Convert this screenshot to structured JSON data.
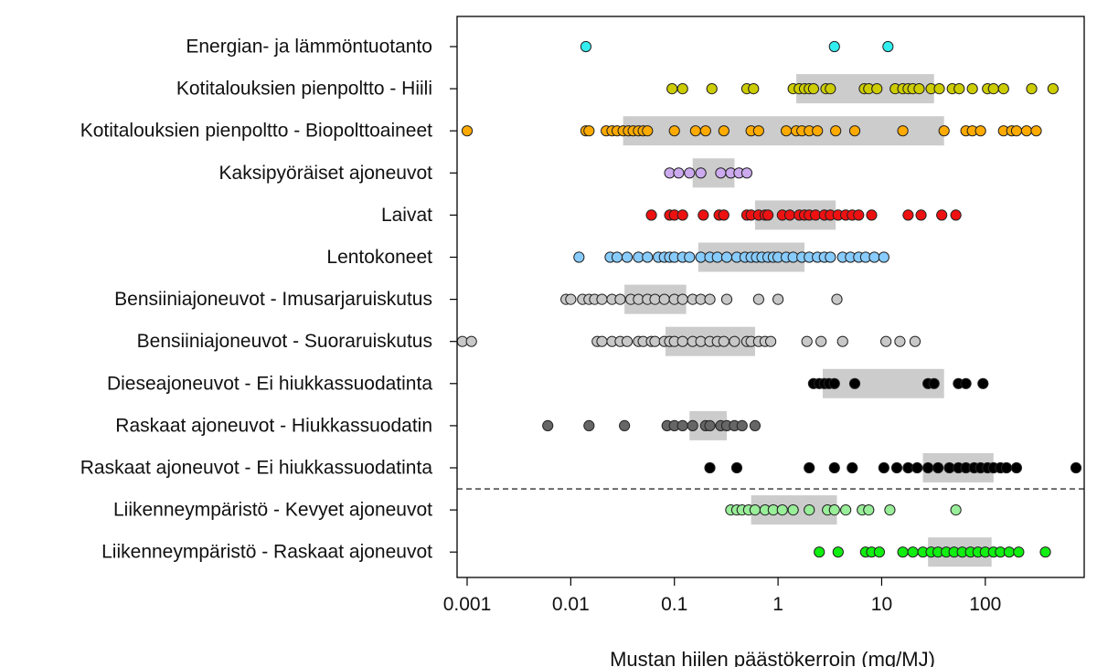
{
  "chart_data": {
    "type": "scatter",
    "xscale": "log",
    "xlim": [
      0.0008,
      900
    ],
    "xlabel": "Mustan hiilen päästökerroin (mg/MJ)",
    "xticks": [
      {
        "value": 0.001,
        "label": "0.001"
      },
      {
        "value": 0.01,
        "label": "0.01"
      },
      {
        "value": 0.1,
        "label": "0.1"
      },
      {
        "value": 1,
        "label": "1"
      },
      {
        "value": 10,
        "label": "10"
      },
      {
        "value": 100,
        "label": "100"
      }
    ],
    "separator_after_category": 10,
    "categories": [
      {
        "key": "energia",
        "label": "Energian- ja lämmöntuotanto",
        "color": "#33eeee",
        "box": null,
        "points": [
          0.014,
          3.5,
          11.5
        ]
      },
      {
        "key": "hiili",
        "label": "Kotitalouksien pienpoltto - Hiili",
        "color": "#cccc00",
        "box": [
          1.5,
          32
        ],
        "points": [
          0.095,
          0.12,
          0.23,
          0.5,
          0.58,
          1.4,
          1.6,
          1.8,
          2.0,
          2.2,
          2.9,
          3.2,
          6.8,
          7.5,
          9.0,
          13.5,
          16.0,
          18.0,
          20.0,
          23.0,
          30.0,
          36.0,
          48.0,
          56.0,
          75.0,
          105.0,
          120.0,
          150.0,
          280.0,
          450.0
        ]
      },
      {
        "key": "bio",
        "label": "Kotitalouksien pienpoltto - Biopolttoaineet",
        "color": "#ffaa00",
        "box": [
          0.032,
          40
        ],
        "points": [
          0.001,
          0.014,
          0.015,
          0.022,
          0.025,
          0.028,
          0.032,
          0.036,
          0.04,
          0.045,
          0.05,
          0.055,
          0.1,
          0.16,
          0.2,
          0.3,
          0.55,
          0.65,
          1.2,
          1.5,
          1.7,
          2.0,
          2.4,
          3.6,
          5.5,
          16.0,
          40.0,
          65.0,
          75.0,
          90.0,
          150.0,
          180.0,
          200.0,
          250.0,
          310.0
        ]
      },
      {
        "key": "kaksi",
        "label": "Kaksipyöräiset ajoneuvot",
        "color": "#ccaaee",
        "box": [
          0.15,
          0.38
        ],
        "points": [
          0.09,
          0.11,
          0.14,
          0.18,
          0.28,
          0.35,
          0.42,
          0.5
        ]
      },
      {
        "key": "laivat",
        "label": "Laivat",
        "color": "#ee1111",
        "box": [
          0.6,
          3.6
        ],
        "points": [
          0.06,
          0.09,
          0.1,
          0.12,
          0.19,
          0.27,
          0.3,
          0.5,
          0.55,
          0.65,
          0.75,
          0.8,
          1.1,
          1.3,
          1.6,
          1.8,
          2.0,
          2.3,
          2.8,
          3.2,
          3.8,
          4.5,
          5.2,
          6.0,
          8.0,
          18.0,
          24.0,
          38.0,
          52.0
        ]
      },
      {
        "key": "lento",
        "label": "Lentokoneet",
        "color": "#88ccff",
        "box": [
          0.17,
          1.8
        ],
        "points": [
          0.012,
          0.024,
          0.028,
          0.035,
          0.045,
          0.055,
          0.07,
          0.08,
          0.09,
          0.1,
          0.12,
          0.14,
          0.18,
          0.22,
          0.26,
          0.32,
          0.4,
          0.48,
          0.55,
          0.62,
          0.7,
          0.8,
          0.9,
          1.0,
          1.2,
          1.4,
          1.7,
          2.0,
          2.4,
          2.8,
          3.2,
          4.2,
          5.0,
          6.0,
          7.0,
          8.5,
          10.5
        ]
      },
      {
        "key": "bens_imu",
        "label": "Bensiiniajoneuvot - Imusarjaruiskutus",
        "color": "#c8c8c8",
        "box": [
          0.033,
          0.13
        ],
        "points": [
          0.009,
          0.01,
          0.013,
          0.015,
          0.017,
          0.02,
          0.025,
          0.03,
          0.038,
          0.045,
          0.055,
          0.065,
          0.08,
          0.1,
          0.12,
          0.15,
          0.18,
          0.22,
          0.32,
          0.65,
          1.0,
          3.7
        ]
      },
      {
        "key": "bens_suora",
        "label": "Bensiiniajoneuvot - Suoraruiskutus",
        "color": "#c8c8c8",
        "box": [
          0.082,
          0.6
        ],
        "points": [
          0.0009,
          0.0011,
          0.018,
          0.02,
          0.025,
          0.03,
          0.035,
          0.045,
          0.05,
          0.06,
          0.065,
          0.08,
          0.09,
          0.1,
          0.12,
          0.15,
          0.18,
          0.22,
          0.26,
          0.3,
          0.38,
          0.5,
          0.55,
          0.65,
          0.75,
          0.85,
          1.9,
          2.6,
          4.2,
          11.0,
          15.0,
          21.0
        ]
      },
      {
        "key": "diesel_ei",
        "label": "Dieseajoneuvot - Ei hiukkassuodatinta",
        "color": "#000000",
        "box": [
          2.7,
          40
        ],
        "points": [
          2.2,
          2.5,
          2.8,
          3.1,
          3.5,
          5.5,
          28.0,
          32.0,
          55.0,
          65.0,
          95.0
        ]
      },
      {
        "key": "raskaat_hiuk",
        "label": "Raskaat ajoneuvot - Hiukkassuodatin",
        "color": "#666666",
        "box": [
          0.14,
          0.32
        ],
        "points": [
          0.006,
          0.015,
          0.033,
          0.085,
          0.1,
          0.12,
          0.15,
          0.2,
          0.22,
          0.28,
          0.32,
          0.38,
          0.45,
          0.6
        ]
      },
      {
        "key": "raskaat_ei",
        "label": "Raskaat ajoneuvot - Ei hiukkassuodatinta",
        "color": "#000000",
        "box": [
          25,
          120
        ],
        "points": [
          0.22,
          0.4,
          2.0,
          3.5,
          5.2,
          10.5,
          14.0,
          18.0,
          22.0,
          28.0,
          35.0,
          45.0,
          55.0,
          65.0,
          78.0,
          90.0,
          105.0,
          120.0,
          140.0,
          160.0,
          200.0,
          750.0
        ]
      },
      {
        "key": "liik_kevyt",
        "label": "Liikenneympäristö - Kevyet ajoneuvot",
        "color": "#99ee99",
        "box": [
          0.55,
          3.7
        ],
        "points": [
          0.35,
          0.4,
          0.45,
          0.52,
          0.6,
          0.75,
          0.9,
          1.1,
          1.4,
          2.0,
          3.0,
          3.5,
          4.5,
          6.5,
          7.5,
          12.0,
          52.0
        ]
      },
      {
        "key": "liik_raskas",
        "label": "Liikenneympäristö - Raskaat ajoneuvot",
        "color": "#11ee11",
        "box": [
          28,
          115
        ],
        "points": [
          2.5,
          3.8,
          7.0,
          8.0,
          9.5,
          16.0,
          20.0,
          25.0,
          30.0,
          35.0,
          42.0,
          50.0,
          60.0,
          72.0,
          85.0,
          100.0,
          120.0,
          140.0,
          170.0,
          210.0,
          380.0
        ]
      }
    ]
  }
}
